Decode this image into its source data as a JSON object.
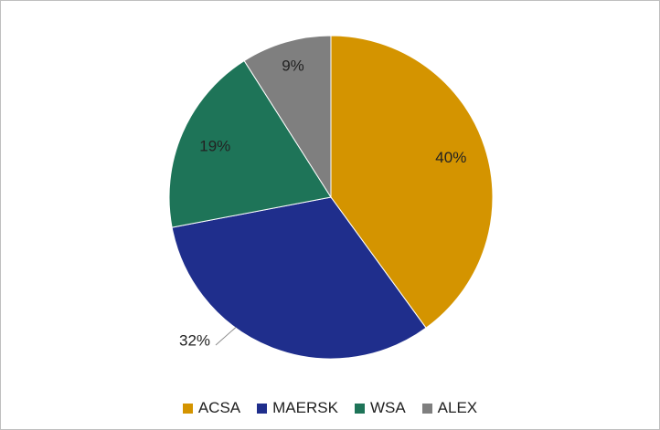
{
  "chart_data": {
    "type": "pie",
    "categories": [
      "ACSA",
      "MAERSK",
      "WSA",
      "ALEX"
    ],
    "values": [
      40,
      32,
      19,
      9
    ],
    "labels": [
      "40%",
      "32%",
      "19%",
      "9%"
    ],
    "colors": [
      "#D49400",
      "#1F2E8C",
      "#1E7458",
      "#7F7F7F"
    ],
    "title": "",
    "legend_position": "bottom"
  }
}
